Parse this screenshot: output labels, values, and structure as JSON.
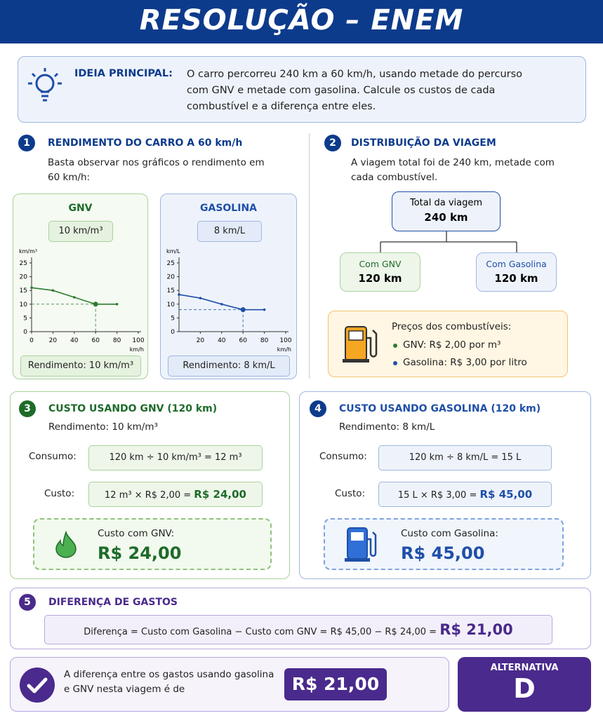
{
  "header": {
    "title": "RESOLUÇÃO – ENEM"
  },
  "main_idea": {
    "label": "IDEIA PRINCIPAL:",
    "text": "O carro percorreu 240 km a 60 km/h, usando metade do percurso com GNV e metade com gasolina. Calcule os custos de cada combustível e a diferença entre eles."
  },
  "step1": {
    "number": "1",
    "title": "RENDIMENTO DO CARRO A 60 km/h",
    "text": "Basta observar nos gráficos o rendimento em 60 km/h:",
    "charts": [
      {
        "type": "line",
        "title": "GNV",
        "badge": "10 km/m³",
        "y_label": "km/m³",
        "x_label": "km/h",
        "x": [
          0,
          20,
          40,
          60,
          80
        ],
        "values": [
          16,
          15,
          12.5,
          10,
          10
        ],
        "color": "#2e7d32",
        "xlim": [
          0,
          100
        ],
        "ylim": [
          0,
          25
        ],
        "xticks": [
          0,
          20,
          40,
          60,
          80,
          100
        ],
        "yticks": [
          0,
          5,
          10,
          15,
          20,
          25
        ],
        "footer": "Rendimento: 10 km/m³"
      },
      {
        "type": "line",
        "title": "GASOLINA",
        "badge": "8 km/L",
        "y_label": "km/L",
        "x_label": "km/h",
        "x": [
          0,
          20,
          40,
          60,
          80
        ],
        "values": [
          13.5,
          12.2,
          10,
          8,
          8
        ],
        "color": "#1f4fa8",
        "xlim": [
          0,
          100
        ],
        "ylim": [
          0,
          25
        ],
        "xticks": [
          20,
          40,
          60,
          80,
          100
        ],
        "yticks": [
          0,
          5,
          10,
          15,
          20,
          25
        ],
        "footer": "Rendimento: 8 km/L"
      }
    ]
  },
  "step2": {
    "number": "2",
    "title": "DISTRIBUIÇÃO DA VIAGEM",
    "text": "A viagem total foi de 240 km, metade com cada combustível.",
    "total": {
      "label": "Total da viagem",
      "value": "240 km"
    },
    "left": {
      "label": "Com GNV",
      "value": "120 km"
    },
    "right": {
      "label": "Com Gasolina",
      "value": "120 km"
    },
    "prices": {
      "title": "Preços dos combustíveis:",
      "items": [
        "GNV: R$ 2,00 por m³",
        "Gasolina: R$ 3,00 por litro"
      ]
    }
  },
  "step3": {
    "number": "3",
    "title": "CUSTO USANDO GNV (120 km)",
    "subtitle": "Rendimento: 10 km/m³",
    "consumo_label": "Consumo:",
    "consumo": "120 km ÷ 10 km/m³ = 12 m³",
    "custo_label": "Custo:",
    "custo": "12 m³ × R$ 2,00 =",
    "custo_result": "R$ 24,00",
    "summary_label": "Custo com GNV:",
    "summary_value": "R$ 24,00"
  },
  "step4": {
    "number": "4",
    "title": "CUSTO USANDO GASOLINA (120 km)",
    "subtitle": "Rendimento: 8 km/L",
    "consumo_label": "Consumo:",
    "consumo": "120 km ÷ 8 km/L = 15 L",
    "custo_label": "Custo:",
    "custo": "15 L × R$ 3,00 =",
    "custo_result": "R$ 45,00",
    "summary_label": "Custo com Gasolina:",
    "summary_value": "R$ 45,00"
  },
  "step5": {
    "number": "5",
    "title": "DIFERENÇA DE GASTOS",
    "formula": "Diferença = Custo com Gasolina − Custo com GNV = R$ 45,00 − R$ 24,00 =",
    "result": "R$ 21,00"
  },
  "conclusion": {
    "text": "A diferença entre os gastos usando gasolina e GNV nesta viagem é de",
    "value": "R$ 21,00",
    "answer_label": "ALTERNATIVA",
    "answer": "D"
  }
}
